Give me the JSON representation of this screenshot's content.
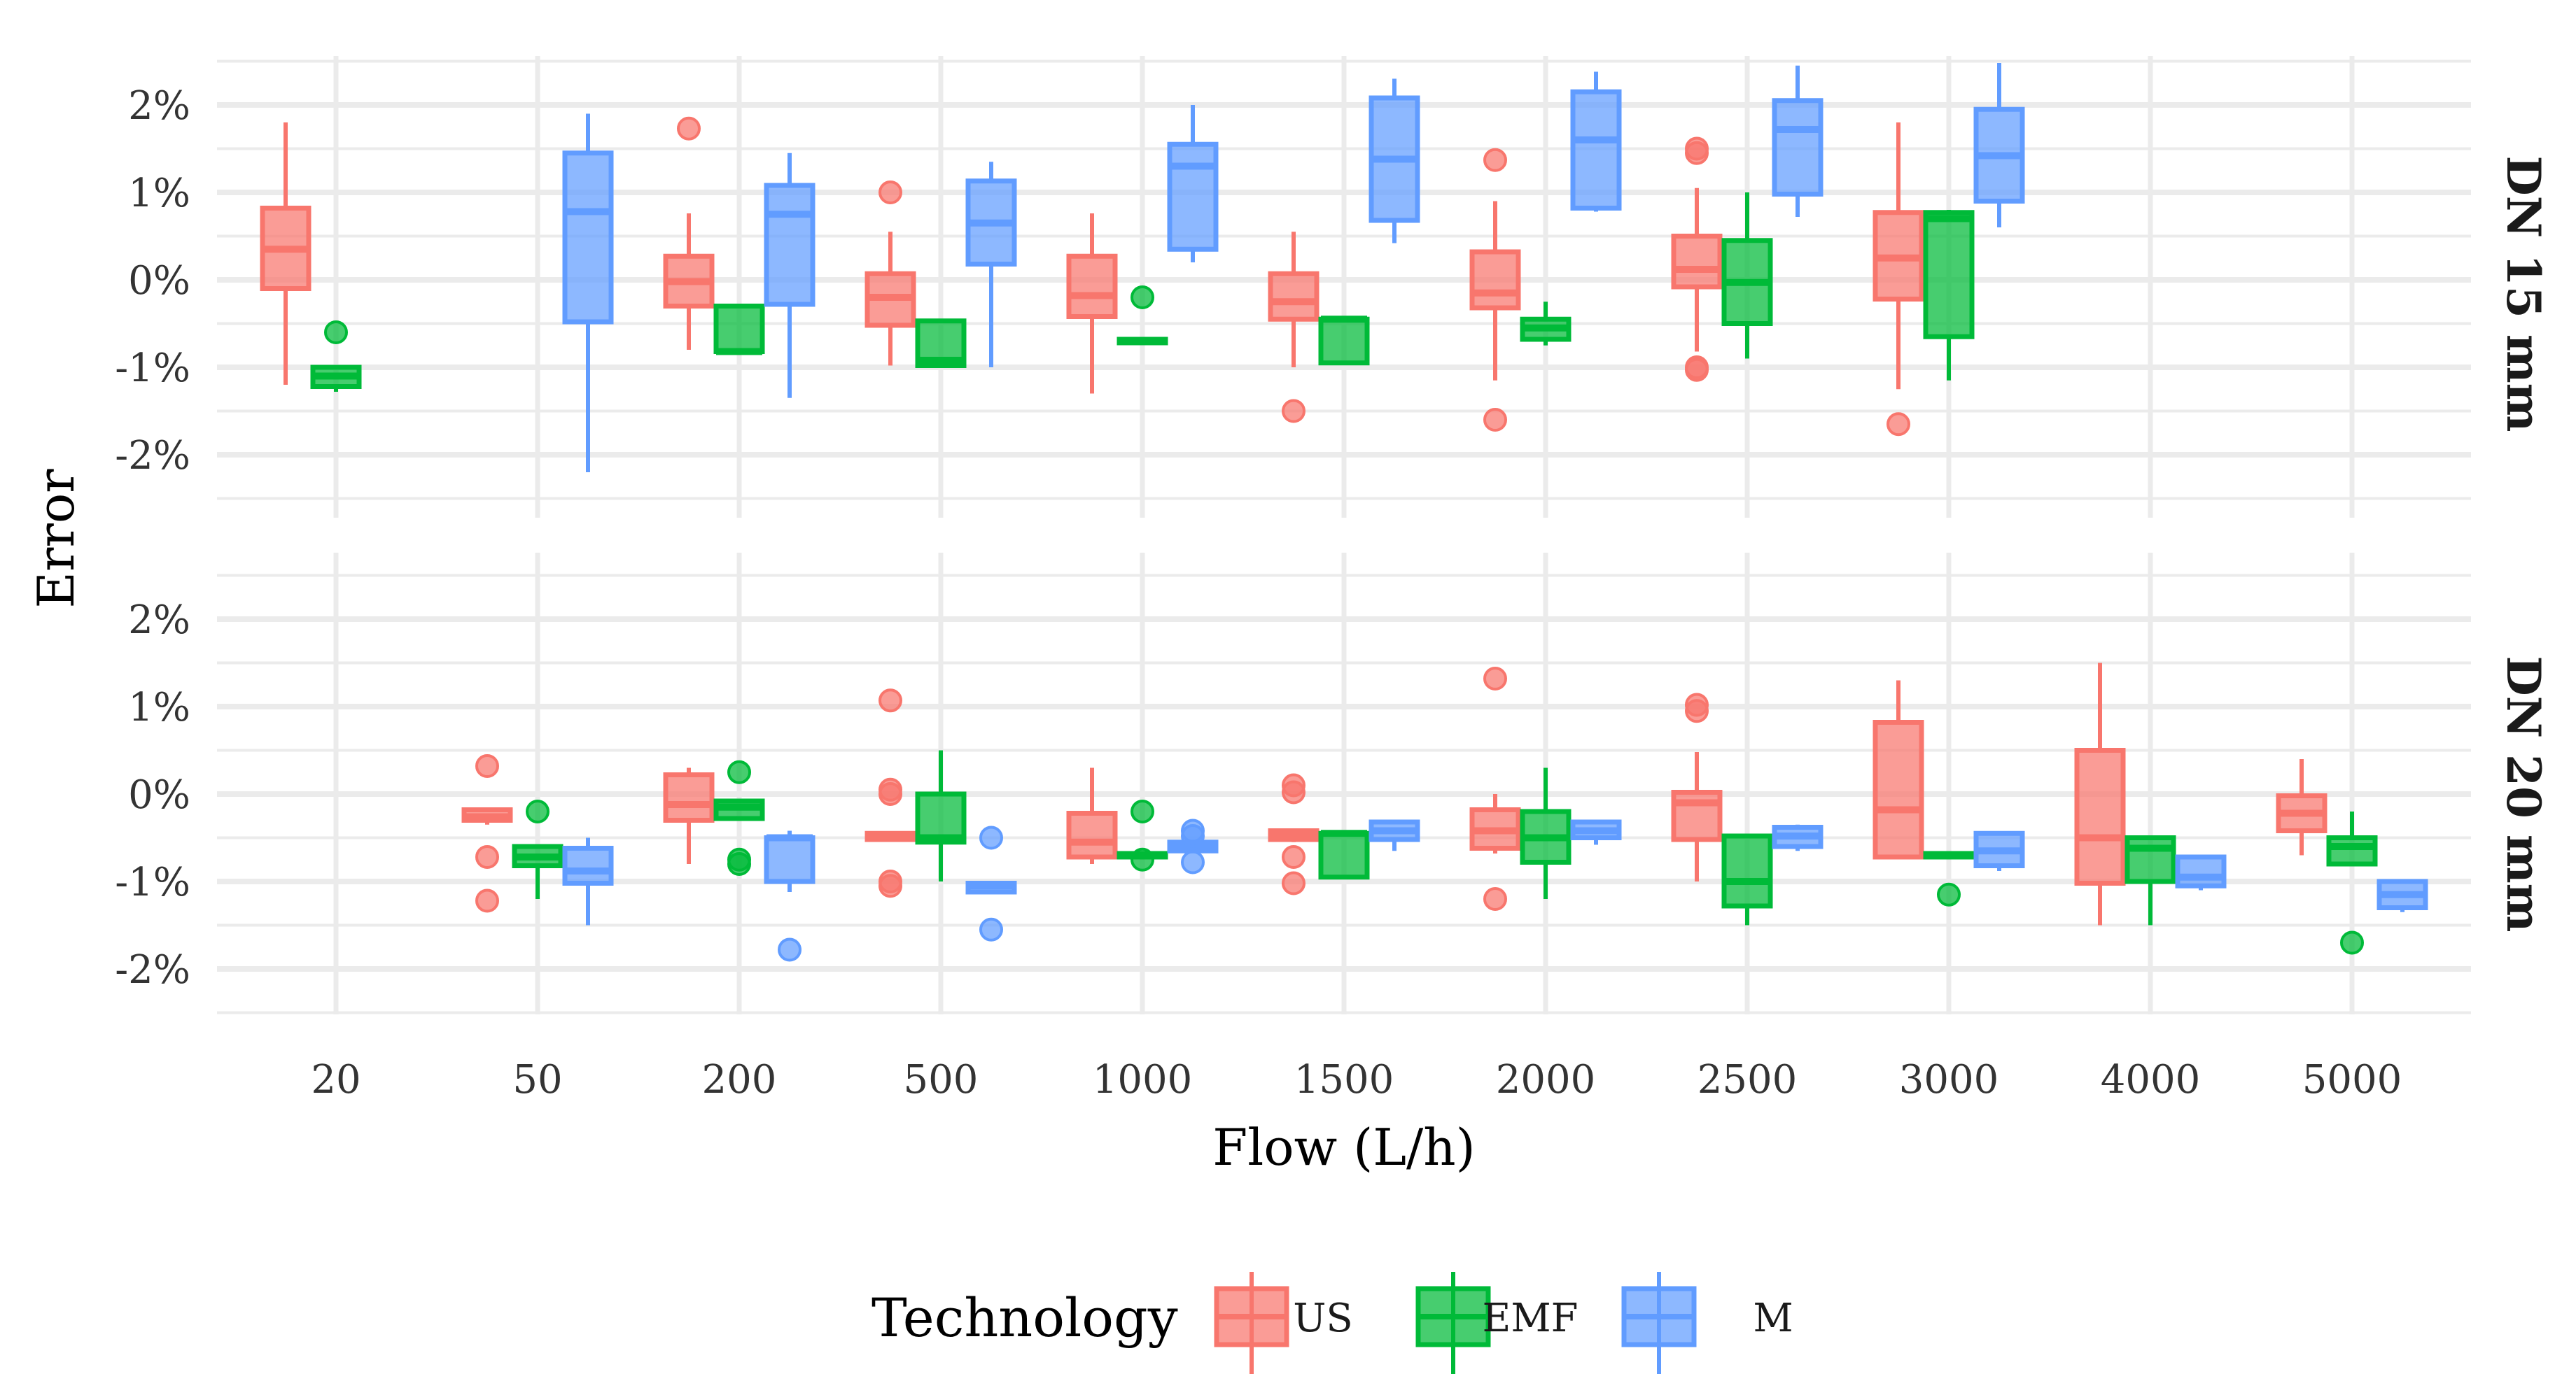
{
  "chart_data": {
    "type": "box",
    "x": {
      "label": "Flow (L/h)",
      "categories": [
        "20",
        "50",
        "200",
        "500",
        "1000",
        "1500",
        "2000",
        "2500",
        "3000",
        "4000",
        "5000"
      ]
    },
    "y": {
      "label": "Error",
      "ticks": [
        2,
        1,
        0,
        -1,
        -2
      ],
      "tick_labels": [
        "2%",
        "1%",
        "0%",
        "-1%",
        "-2%"
      ],
      "range": [
        -2.6,
        2.6
      ],
      "unit": "%"
    },
    "grid": true,
    "legend": {
      "title": "Technology",
      "position": "bottom",
      "entries": [
        "US",
        "EMF",
        "M"
      ]
    },
    "colors": {
      "US": "#F8766D",
      "EMF": "#00BA38",
      "M": "#619CFF",
      "grid": "#EBEBEB"
    },
    "panels": [
      {
        "strip": "DN 15 mm",
        "series": [
          {
            "name": "US",
            "boxes": [
              {
                "flow": "20",
                "lower": -1.2,
                "q1": -0.1,
                "median": 0.35,
                "q3": 0.82,
                "upper": 1.8,
                "outliers": []
              },
              {
                "flow": "200",
                "lower": -0.8,
                "q1": -0.3,
                "median": -0.02,
                "q3": 0.27,
                "upper": 0.76,
                "outliers": [
                  1.73
                ]
              },
              {
                "flow": "500",
                "lower": -0.98,
                "q1": -0.52,
                "median": -0.2,
                "q3": 0.07,
                "upper": 0.55,
                "outliers": [
                  1.0
                ]
              },
              {
                "flow": "1000",
                "lower": -1.3,
                "q1": -0.42,
                "median": -0.18,
                "q3": 0.27,
                "upper": 0.76,
                "outliers": []
              },
              {
                "flow": "1500",
                "lower": -1.0,
                "q1": -0.45,
                "median": -0.25,
                "q3": 0.07,
                "upper": 0.55,
                "outliers": [
                  -1.5
                ]
              },
              {
                "flow": "2000",
                "lower": -1.15,
                "q1": -0.32,
                "median": -0.15,
                "q3": 0.32,
                "upper": 0.9,
                "outliers": [
                  1.37,
                  -1.6
                ]
              },
              {
                "flow": "2500",
                "lower": -0.82,
                "q1": -0.08,
                "median": 0.12,
                "q3": 0.5,
                "upper": 1.05,
                "outliers": [
                  1.5,
                  1.45,
                  -1.0,
                  -1.03
                ]
              },
              {
                "flow": "3000",
                "lower": -1.25,
                "q1": -0.22,
                "median": 0.25,
                "q3": 0.77,
                "upper": 1.8,
                "outliers": [
                  -1.65
                ]
              }
            ]
          },
          {
            "name": "EMF",
            "boxes": [
              {
                "flow": "20",
                "lower": -1.28,
                "q1": -1.22,
                "median": -1.1,
                "q3": -1.0,
                "upper": -1.0,
                "outliers": [
                  -0.6
                ]
              },
              {
                "flow": "200",
                "lower": -0.85,
                "q1": -0.82,
                "median": -0.82,
                "q3": -0.3,
                "upper": -0.3,
                "outliers": []
              },
              {
                "flow": "500",
                "lower": -1.0,
                "q1": -0.98,
                "median": -0.92,
                "q3": -0.47,
                "upper": -0.47,
                "outliers": []
              },
              {
                "flow": "1000",
                "lower": -0.72,
                "q1": -0.72,
                "median": -0.7,
                "q3": -0.68,
                "upper": -0.68,
                "outliers": [
                  -0.2
                ]
              },
              {
                "flow": "1500",
                "lower": -0.95,
                "q1": -0.95,
                "median": -0.45,
                "q3": -0.45,
                "upper": -0.45,
                "outliers": []
              },
              {
                "flow": "2000",
                "lower": -0.75,
                "q1": -0.68,
                "median": -0.55,
                "q3": -0.45,
                "upper": -0.25,
                "outliers": []
              },
              {
                "flow": "2500",
                "lower": -0.9,
                "q1": -0.5,
                "median": -0.03,
                "q3": 0.45,
                "upper": 1.0,
                "outliers": []
              },
              {
                "flow": "3000",
                "lower": -1.15,
                "q1": -0.65,
                "median": 0.7,
                "q3": 0.77,
                "upper": 0.8,
                "outliers": []
              }
            ]
          },
          {
            "name": "M",
            "boxes": [
              {
                "flow": "50",
                "lower": -2.2,
                "q1": -0.48,
                "median": 0.78,
                "q3": 1.45,
                "upper": 1.9,
                "outliers": []
              },
              {
                "flow": "200",
                "lower": -1.35,
                "q1": -0.28,
                "median": 0.75,
                "q3": 1.08,
                "upper": 1.45,
                "outliers": []
              },
              {
                "flow": "500",
                "lower": -1.0,
                "q1": 0.18,
                "median": 0.65,
                "q3": 1.13,
                "upper": 1.35,
                "outliers": []
              },
              {
                "flow": "1000",
                "lower": 0.2,
                "q1": 0.35,
                "median": 1.3,
                "q3": 1.55,
                "upper": 2.0,
                "outliers": []
              },
              {
                "flow": "1500",
                "lower": 0.42,
                "q1": 0.68,
                "median": 1.38,
                "q3": 2.08,
                "upper": 2.3,
                "outliers": []
              },
              {
                "flow": "2000",
                "lower": 0.78,
                "q1": 0.82,
                "median": 1.6,
                "q3": 2.15,
                "upper": 2.38,
                "outliers": []
              },
              {
                "flow": "2500",
                "lower": 0.72,
                "q1": 0.98,
                "median": 1.72,
                "q3": 2.05,
                "upper": 2.45,
                "outliers": []
              },
              {
                "flow": "3000",
                "lower": 0.6,
                "q1": 0.9,
                "median": 1.42,
                "q3": 1.95,
                "upper": 2.48,
                "outliers": []
              }
            ]
          }
        ]
      },
      {
        "strip": "DN 20 mm",
        "series": [
          {
            "name": "US",
            "boxes": [
              {
                "flow": "50",
                "lower": -0.35,
                "q1": -0.3,
                "median": -0.26,
                "q3": -0.18,
                "upper": -0.18,
                "outliers": [
                  0.32,
                  -0.72,
                  -1.22
                ]
              },
              {
                "flow": "200",
                "lower": -0.8,
                "q1": -0.3,
                "median": -0.12,
                "q3": 0.22,
                "upper": 0.3,
                "outliers": []
              },
              {
                "flow": "500",
                "lower": -0.52,
                "q1": -0.52,
                "median": -0.5,
                "q3": -0.45,
                "upper": -0.45,
                "outliers": [
                  1.07,
                  0.05,
                  0.0,
                  -1.0,
                  -1.05
                ]
              },
              {
                "flow": "1000",
                "lower": -0.8,
                "q1": -0.72,
                "median": -0.55,
                "q3": -0.22,
                "upper": 0.3,
                "outliers": []
              },
              {
                "flow": "1500",
                "lower": -0.55,
                "q1": -0.52,
                "median": -0.48,
                "q3": -0.42,
                "upper": -0.42,
                "outliers": [
                  0.1,
                  0.02,
                  -0.72,
                  -1.02
                ]
              },
              {
                "flow": "2000",
                "lower": -0.68,
                "q1": -0.62,
                "median": -0.42,
                "q3": -0.18,
                "upper": 0.0,
                "outliers": [
                  1.32,
                  -1.2
                ]
              },
              {
                "flow": "2500",
                "lower": -1.0,
                "q1": -0.52,
                "median": -0.1,
                "q3": 0.02,
                "upper": 0.48,
                "outliers": [
                  1.02,
                  0.95
                ]
              },
              {
                "flow": "3000",
                "lower": -0.72,
                "q1": -0.72,
                "median": -0.18,
                "q3": 0.82,
                "upper": 1.3,
                "outliers": []
              },
              {
                "flow": "4000",
                "lower": -1.5,
                "q1": -1.02,
                "median": -0.5,
                "q3": 0.5,
                "upper": 1.5,
                "outliers": []
              },
              {
                "flow": "5000",
                "lower": -0.7,
                "q1": -0.42,
                "median": -0.22,
                "q3": -0.02,
                "upper": 0.4,
                "outliers": []
              }
            ]
          },
          {
            "name": "EMF",
            "boxes": [
              {
                "flow": "50",
                "lower": -1.2,
                "q1": -0.82,
                "median": -0.72,
                "q3": -0.6,
                "upper": -0.6,
                "outliers": [
                  -0.2
                ]
              },
              {
                "flow": "200",
                "lower": -0.28,
                "q1": -0.28,
                "median": -0.15,
                "q3": -0.08,
                "upper": -0.08,
                "outliers": [
                  0.25,
                  -0.75,
                  -0.8
                ]
              },
              {
                "flow": "500",
                "lower": -1.0,
                "q1": -0.55,
                "median": -0.5,
                "q3": 0.0,
                "upper": 0.5,
                "outliers": []
              },
              {
                "flow": "1000",
                "lower": -0.72,
                "q1": -0.72,
                "median": -0.7,
                "q3": -0.68,
                "upper": -0.68,
                "outliers": [
                  -0.2,
                  -0.75
                ]
              },
              {
                "flow": "1500",
                "lower": -0.95,
                "q1": -0.95,
                "median": -0.45,
                "q3": -0.45,
                "upper": -0.45,
                "outliers": []
              },
              {
                "flow": "2000",
                "lower": -1.2,
                "q1": -0.78,
                "median": -0.5,
                "q3": -0.2,
                "upper": 0.3,
                "outliers": []
              },
              {
                "flow": "2500",
                "lower": -1.5,
                "q1": -1.28,
                "median": -1.0,
                "q3": -0.48,
                "upper": -0.48,
                "outliers": []
              },
              {
                "flow": "3000",
                "lower": -0.72,
                "q1": -0.72,
                "median": -0.7,
                "q3": -0.68,
                "upper": -0.68,
                "outliers": [
                  -1.15
                ]
              },
              {
                "flow": "4000",
                "lower": -1.5,
                "q1": -1.0,
                "median": -0.62,
                "q3": -0.5,
                "upper": -0.5,
                "outliers": []
              },
              {
                "flow": "5000",
                "lower": -0.8,
                "q1": -0.8,
                "median": -0.6,
                "q3": -0.5,
                "upper": -0.2,
                "outliers": [
                  -1.7
                ]
              }
            ]
          },
          {
            "name": "M",
            "boxes": [
              {
                "flow": "50",
                "lower": -1.5,
                "q1": -1.02,
                "median": -0.88,
                "q3": -0.62,
                "upper": -0.5,
                "outliers": []
              },
              {
                "flow": "200",
                "lower": -1.12,
                "q1": -1.0,
                "median": -0.5,
                "q3": -0.5,
                "upper": -0.42,
                "outliers": [
                  -1.78
                ]
              },
              {
                "flow": "500",
                "lower": -1.12,
                "q1": -1.12,
                "median": -1.05,
                "q3": -1.02,
                "upper": -1.02,
                "outliers": [
                  -0.5,
                  -1.55
                ]
              },
              {
                "flow": "1000",
                "lower": -0.65,
                "q1": -0.65,
                "median": -0.6,
                "q3": -0.55,
                "upper": -0.55,
                "outliers": [
                  -0.42,
                  -0.48,
                  -0.78
                ]
              },
              {
                "flow": "1500",
                "lower": -0.65,
                "q1": -0.52,
                "median": -0.42,
                "q3": -0.32,
                "upper": -0.32,
                "outliers": []
              },
              {
                "flow": "2000",
                "lower": -0.58,
                "q1": -0.5,
                "median": -0.42,
                "q3": -0.32,
                "upper": -0.32,
                "outliers": []
              },
              {
                "flow": "2500",
                "lower": -0.65,
                "q1": -0.6,
                "median": -0.48,
                "q3": -0.38,
                "upper": -0.35,
                "outliers": []
              },
              {
                "flow": "3000",
                "lower": -0.88,
                "q1": -0.82,
                "median": -0.65,
                "q3": -0.45,
                "upper": -0.45,
                "outliers": []
              },
              {
                "flow": "4000",
                "lower": -1.1,
                "q1": -1.05,
                "median": -0.95,
                "q3": -0.72,
                "upper": -0.72,
                "outliers": []
              },
              {
                "flow": "5000",
                "lower": -1.35,
                "q1": -1.3,
                "median": -1.15,
                "q3": -1.0,
                "upper": -1.0,
                "outliers": []
              }
            ]
          }
        ]
      }
    ]
  }
}
